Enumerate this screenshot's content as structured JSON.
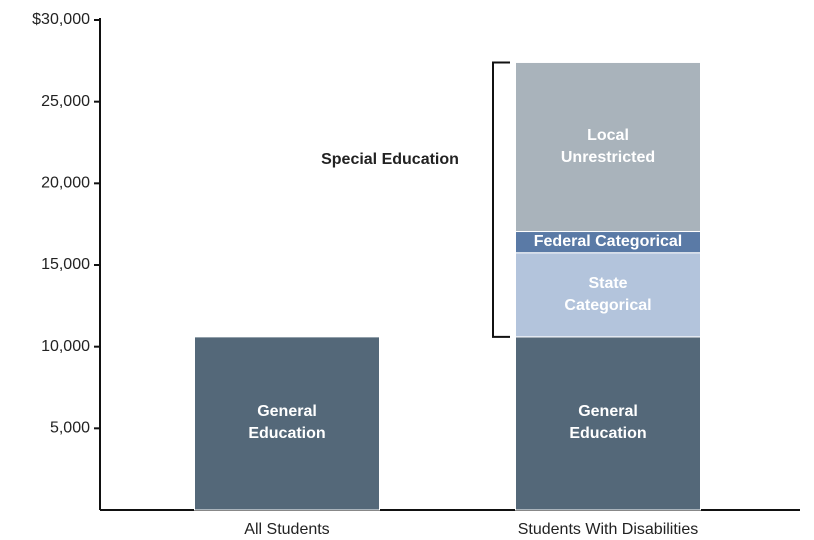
{
  "chart_data": {
    "type": "stacked-bar",
    "categories": [
      "All Students",
      "Students With Disabilities"
    ],
    "series": [
      {
        "name": "General Education",
        "color": "#546879",
        "values": [
          10600,
          10600
        ]
      },
      {
        "name": "State Categorical",
        "color": "#b3c4dc",
        "values": [
          null,
          5150
        ]
      },
      {
        "name": "Federal Categorical",
        "color": "#5a7aa6",
        "values": [
          null,
          1300
        ]
      },
      {
        "name": "Local Unrestricted",
        "color": "#a9b3bb",
        "values": [
          null,
          10350
        ]
      }
    ],
    "annotation": "Special Education",
    "ylim": [
      0,
      30000
    ],
    "yticks": [
      {
        "value": 5000,
        "label": "5,000"
      },
      {
        "value": 10000,
        "label": "10,000"
      },
      {
        "value": 15000,
        "label": "15,000"
      },
      {
        "value": 20000,
        "label": "20,000"
      },
      {
        "value": 25000,
        "label": "25,000"
      },
      {
        "value": 30000,
        "label": "$30,000"
      }
    ]
  }
}
